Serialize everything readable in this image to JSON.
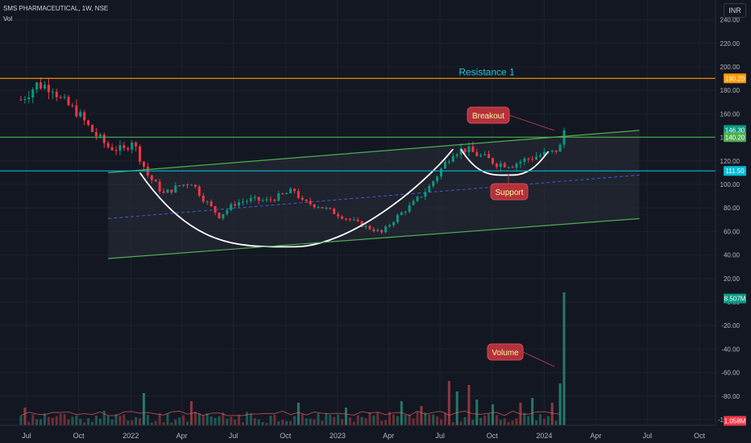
{
  "header": {
    "symbol_line": "SMS PHARMACEUTICAL, 1W, NSE",
    "vol_label": "Vol",
    "currency": "INR"
  },
  "chart_data": {
    "type": "candlestick",
    "y_ticks": [
      "240.00",
      "220.00",
      "200.00",
      "180.00",
      "160.00",
      "140.00",
      "120.00",
      "100.00",
      "80.00",
      "60.00",
      "40.00",
      "20.00",
      "0.00",
      "-20.00",
      "-40.00",
      "-60.00",
      "-80.00",
      "-100.00"
    ],
    "ylim": [
      -110,
      245
    ],
    "x_ticks": [
      "Jul",
      "Oct",
      "2022",
      "Apr",
      "Jul",
      "Oct",
      "2023",
      "Apr",
      "Jul",
      "Oct",
      "2024",
      "Apr",
      "Jul",
      "Oct"
    ],
    "x_tick_dates": [
      "2021-07",
      "2021-10",
      "2022-01",
      "2022-04",
      "2022-07",
      "2022-10",
      "2023-01",
      "2023-04",
      "2023-07",
      "2023-10",
      "2024-01",
      "2024-04",
      "2024-07",
      "2024-10"
    ],
    "price_badges": [
      {
        "label": "190.20",
        "value": 190.2,
        "color": "#ff9800"
      },
      {
        "label": "146.30",
        "value": 146.3,
        "color": "#089981"
      },
      {
        "label": "140.20",
        "value": 140.2,
        "color": "#4caf50"
      },
      {
        "label": "111.50",
        "value": 111.5,
        "color": "#00bcd4"
      },
      {
        "label": "8.507M",
        "value": 3,
        "color": "#089981"
      },
      {
        "label": "1.058M",
        "value": -101,
        "color": "#f23645"
      }
    ],
    "horizontal_lines": [
      {
        "name": "resistance",
        "value": 190.2,
        "color": "#ff9800"
      },
      {
        "name": "breakout-level",
        "value": 140.2,
        "color": "#4caf50"
      },
      {
        "name": "support-level",
        "value": 111.5,
        "color": "#00bcd4"
      }
    ],
    "channel": {
      "start_date": "2021-11-22",
      "end_date": "2024-06-17",
      "upper": [
        110,
        146
      ],
      "middle": [
        71,
        108
      ],
      "lower": [
        37,
        71
      ]
    },
    "cup_curve": {
      "left": [
        "2022-01-17",
        110
      ],
      "bottom": [
        "2022-10-17",
        47
      ],
      "right": [
        "2023-07-24",
        130
      ]
    },
    "handle_curve": {
      "left": [
        "2023-08-07",
        130
      ],
      "bottom": [
        "2023-11-06",
        108
      ],
      "right": [
        "2024-01-08",
        128
      ]
    },
    "annotations": [
      {
        "text": "Resistance 1",
        "color": "#26c6da"
      },
      {
        "text": "Breakout",
        "color": "#fff59d"
      },
      {
        "text": "Support",
        "color": "#fff59d"
      },
      {
        "text": "Volume",
        "color": "#fff59d"
      }
    ],
    "price_anchors": [
      [
        "2021-06-21",
        172
      ],
      [
        "2021-07-19",
        185
      ],
      [
        "2021-08-16",
        183
      ],
      [
        "2021-08-30",
        172
      ],
      [
        "2021-09-27",
        162
      ],
      [
        "2021-10-25",
        145
      ],
      [
        "2021-11-22",
        132
      ],
      [
        "2021-12-20",
        129
      ],
      [
        "2022-01-03",
        138
      ],
      [
        "2022-01-31",
        108
      ],
      [
        "2022-02-28",
        92
      ],
      [
        "2022-03-28",
        99
      ],
      [
        "2022-04-18",
        102
      ],
      [
        "2022-05-09",
        88
      ],
      [
        "2022-06-06",
        73
      ],
      [
        "2022-07-04",
        84
      ],
      [
        "2022-08-01",
        87
      ],
      [
        "2022-08-29",
        86
      ],
      [
        "2022-09-26",
        91
      ],
      [
        "2022-10-17",
        95
      ],
      [
        "2022-10-31",
        85
      ],
      [
        "2022-11-28",
        82
      ],
      [
        "2022-12-26",
        76
      ],
      [
        "2023-01-23",
        70
      ],
      [
        "2023-02-20",
        64
      ],
      [
        "2023-03-20",
        59
      ],
      [
        "2023-04-17",
        73
      ],
      [
        "2023-05-15",
        84
      ],
      [
        "2023-06-12",
        98
      ],
      [
        "2023-07-03",
        113
      ],
      [
        "2023-07-24",
        128
      ],
      [
        "2023-08-14",
        130
      ],
      [
        "2023-09-11",
        124
      ],
      [
        "2023-10-09",
        118
      ],
      [
        "2023-11-06",
        117
      ],
      [
        "2023-12-04",
        122
      ],
      [
        "2023-12-25",
        125
      ],
      [
        "2024-01-15",
        127
      ],
      [
        "2024-01-29",
        132
      ],
      [
        "2024-02-05",
        146
      ]
    ],
    "volume_spikes": [
      [
        "2021-06-28",
        22
      ],
      [
        "2021-11-15",
        18
      ],
      [
        "2022-01-24",
        40
      ],
      [
        "2022-04-18",
        30
      ],
      [
        "2022-10-24",
        28
      ],
      [
        "2023-01-16",
        22
      ],
      [
        "2023-04-24",
        30
      ],
      [
        "2023-05-29",
        24
      ],
      [
        "2023-07-17",
        55
      ],
      [
        "2023-07-31",
        42
      ],
      [
        "2023-08-21",
        50
      ],
      [
        "2023-09-04",
        32
      ],
      [
        "2023-10-02",
        26
      ],
      [
        "2023-11-20",
        28
      ],
      [
        "2023-12-11",
        34
      ],
      [
        "2024-01-15",
        28
      ],
      [
        "2024-01-29",
        52
      ],
      [
        "2024-02-05",
        165
      ]
    ]
  }
}
